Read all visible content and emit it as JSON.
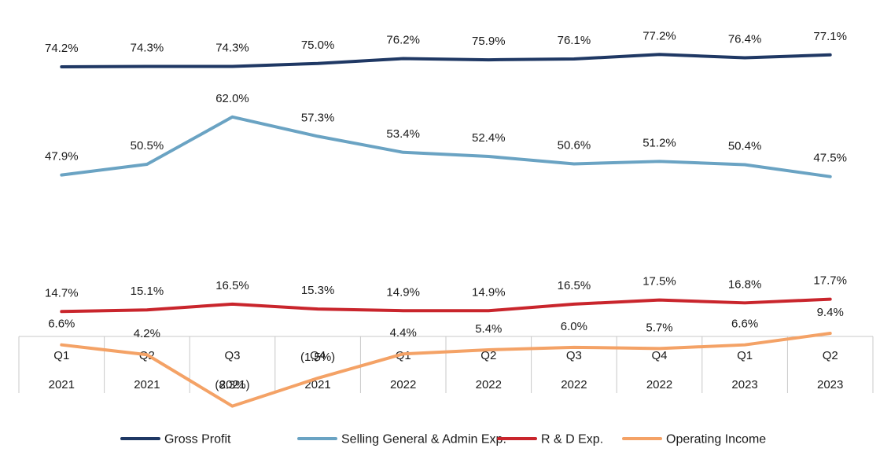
{
  "chart_data": {
    "type": "line",
    "categories": [
      {
        "quarter": "Q1",
        "year": "2021"
      },
      {
        "quarter": "Q2",
        "year": "2021"
      },
      {
        "quarter": "Q3",
        "year": "2021"
      },
      {
        "quarter": "Q4",
        "year": "2021"
      },
      {
        "quarter": "Q1",
        "year": "2022"
      },
      {
        "quarter": "Q2",
        "year": "2022"
      },
      {
        "quarter": "Q3",
        "year": "2022"
      },
      {
        "quarter": "Q4",
        "year": "2022"
      },
      {
        "quarter": "Q1",
        "year": "2023"
      },
      {
        "quarter": "Q2",
        "year": "2023"
      }
    ],
    "series": [
      {
        "name": "Gross Profit",
        "color": "#1f3864",
        "values": [
          74.2,
          74.3,
          74.3,
          75.0,
          76.2,
          75.9,
          76.1,
          77.2,
          76.4,
          77.1
        ],
        "labels": [
          "74.2%",
          "74.3%",
          "74.3%",
          "75.0%",
          "76.2%",
          "75.9%",
          "76.1%",
          "77.2%",
          "76.4%",
          "77.1%"
        ]
      },
      {
        "name": "Selling General & Admin Exp.",
        "color": "#6aa3c3",
        "values": [
          47.9,
          50.5,
          62.0,
          57.3,
          53.4,
          52.4,
          50.6,
          51.2,
          50.4,
          47.5
        ],
        "labels": [
          "47.9%",
          "50.5%",
          "62.0%",
          "57.3%",
          "53.4%",
          "52.4%",
          "50.6%",
          "51.2%",
          "50.4%",
          "47.5%"
        ]
      },
      {
        "name": "R & D Exp.",
        "color": "#c9252c",
        "values": [
          14.7,
          15.1,
          16.5,
          15.3,
          14.9,
          14.9,
          16.5,
          17.5,
          16.8,
          17.7
        ],
        "labels": [
          "14.7%",
          "15.1%",
          "16.5%",
          "15.3%",
          "14.9%",
          "14.9%",
          "16.5%",
          "17.5%",
          "16.8%",
          "17.7%"
        ]
      },
      {
        "name": "Operating Income",
        "color": "#f4a266",
        "values": [
          6.6,
          4.2,
          -8.3,
          -1.5,
          4.4,
          5.4,
          6.0,
          5.7,
          6.6,
          9.4
        ],
        "labels": [
          "6.6%",
          "4.2%",
          "(8.3%)",
          "(1.5%)",
          "4.4%",
          "5.4%",
          "6.0%",
          "5.7%",
          "6.6%",
          "9.4%"
        ]
      }
    ],
    "ylim": [
      -10,
      80
    ],
    "grid": false,
    "legend": "bottom"
  }
}
